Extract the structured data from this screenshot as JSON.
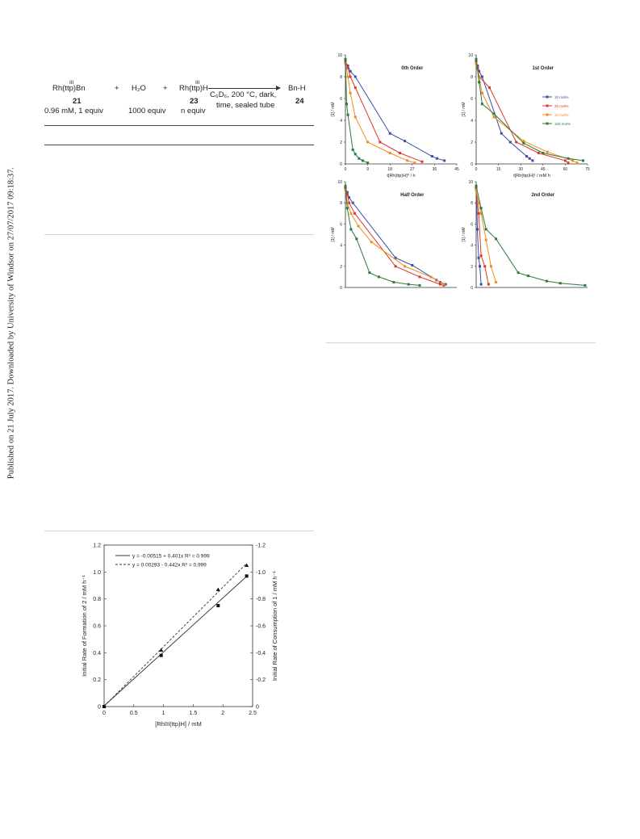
{
  "sidebar": {
    "text": "Published on 21 July 2017. Downloaded by University of Windsor on 27/07/2017 09:18:37."
  },
  "scheme": {
    "reactant1": "Rh(ttp)Bn",
    "reactant1_ox": "III",
    "plus1": "+",
    "reactant2": "H₂O",
    "plus2": "+",
    "reactant3": "Rh(ttp)H",
    "reactant3_ox": "III",
    "cond_line1": "C₆D₆, 200 °C, dark,",
    "cond_line2": "time, sealed tube",
    "product": "Bn-H",
    "num1": "21",
    "num3": "23",
    "num_product": "24",
    "amt1": "0.96 mM, 1 equiv",
    "amt2": "1000 equiv",
    "amt3": "n equiv"
  },
  "chart_data": [
    {
      "type": "line",
      "title": "0th Order",
      "xlabel": "t[Rh(ttp)H]⁰ / h",
      "ylabel": "[1] / mM",
      "xlim": [
        0,
        45
      ],
      "ylim": [
        0,
        10
      ],
      "xticks": [
        "0",
        "9",
        "18",
        "27",
        "36",
        "45"
      ],
      "yticks": [
        "0",
        "2",
        "4",
        "6",
        "8",
        "10"
      ],
      "series": [
        {
          "name": "10 mol%",
          "color": "#3a4fa8",
          "x": [
            0,
            1,
            2,
            4,
            18,
            24,
            35,
            37,
            40
          ],
          "y": [
            9.4,
            9.0,
            8.5,
            8.0,
            2.8,
            2.1,
            0.7,
            0.5,
            0.3
          ]
        },
        {
          "name": "20 mol%",
          "color": "#e0352b",
          "x": [
            0,
            1,
            2,
            4,
            14,
            22,
            31
          ],
          "y": [
            9.3,
            8.8,
            8.0,
            7.0,
            2.0,
            1.0,
            0.2
          ]
        },
        {
          "name": "33 mol%",
          "color": "#f08c1c",
          "x": [
            0,
            1,
            2,
            4,
            9,
            18,
            25,
            28
          ],
          "y": [
            9.2,
            8.0,
            6.5,
            4.3,
            2.0,
            1.0,
            0.3,
            0.1
          ]
        },
        {
          "name": "100 mol%",
          "color": "#2d7a3a",
          "x": [
            0,
            0.5,
            1,
            3,
            4,
            5.5,
            7,
            9
          ],
          "y": [
            9.6,
            5.5,
            4.5,
            1.3,
            0.9,
            0.5,
            0.3,
            0.1
          ]
        }
      ]
    },
    {
      "type": "line",
      "title": "1st Order",
      "xlabel": "t[Rh(ttp)H]¹ / mM h",
      "ylabel": "[1] / mM",
      "xlim": [
        0,
        75
      ],
      "ylim": [
        0,
        10
      ],
      "xticks": [
        "0",
        "15",
        "30",
        "45",
        "60",
        "75"
      ],
      "yticks": [
        "0",
        "2",
        "4",
        "6",
        "8",
        "10"
      ],
      "legend_position": "right",
      "series": [
        {
          "name": "10 mol%",
          "color": "#3a4fa8",
          "x": [
            0,
            1,
            2,
            4,
            17,
            23,
            34,
            36,
            38
          ],
          "y": [
            9.4,
            9.0,
            8.5,
            8.0,
            2.8,
            2.0,
            0.7,
            0.5,
            0.3
          ]
        },
        {
          "name": "20 mol%",
          "color": "#e0352b",
          "x": [
            0,
            1,
            2,
            9,
            27,
            42,
            60,
            62
          ],
          "y": [
            9.3,
            8.8,
            8.0,
            7.0,
            2.0,
            1.0,
            0.3,
            0.1
          ]
        },
        {
          "name": "33 mol%",
          "color": "#f08c1c",
          "x": [
            0,
            2,
            4,
            12,
            32,
            48,
            65,
            68
          ],
          "y": [
            9.2,
            8.0,
            6.5,
            4.3,
            2.1,
            1.1,
            0.3,
            0.1
          ]
        },
        {
          "name": "100 mol%",
          "color": "#2d7a3a",
          "x": [
            0,
            2,
            4,
            12,
            32,
            45,
            62,
            72
          ],
          "y": [
            9.6,
            7.5,
            5.5,
            4.6,
            1.9,
            1.0,
            0.5,
            0.3
          ]
        }
      ]
    },
    {
      "type": "line",
      "title": "Half Order",
      "xlabel": "",
      "ylabel": "[1] / mM",
      "xlim": [
        0,
        60
      ],
      "ylim": [
        0,
        10
      ],
      "xticks": [],
      "yticks": [
        "0",
        "2",
        "4",
        "6",
        "8",
        "10"
      ],
      "series": [
        {
          "name": "10 mol%",
          "color": "#3a4fa8",
          "x": [
            0,
            1,
            2,
            4,
            27,
            36,
            49,
            51,
            54
          ],
          "y": [
            9.4,
            9.0,
            8.5,
            8.0,
            2.8,
            2.1,
            0.7,
            0.5,
            0.3
          ]
        },
        {
          "name": "20 mol%",
          "color": "#e0352b",
          "x": [
            0,
            1,
            2,
            5,
            27,
            40,
            51,
            53
          ],
          "y": [
            9.3,
            8.8,
            8.0,
            7.0,
            2.0,
            1.0,
            0.3,
            0.2
          ]
        },
        {
          "name": "33 mol%",
          "color": "#f08c1c",
          "x": [
            0,
            1,
            3,
            7,
            14,
            32,
            46,
            53
          ],
          "y": [
            9.2,
            8.0,
            7.0,
            5.8,
            4.3,
            2.0,
            1.0,
            0.3
          ]
        },
        {
          "name": "100 mol%",
          "color": "#2d7a3a",
          "x": [
            0,
            1,
            3,
            6,
            13,
            18,
            26,
            34,
            40
          ],
          "y": [
            9.6,
            7.5,
            5.5,
            4.6,
            1.4,
            1.0,
            0.5,
            0.3,
            0.2
          ]
        }
      ]
    },
    {
      "type": "line",
      "title": "2nd Order",
      "xlabel": "",
      "ylabel": "[1] / mM",
      "xlim": [
        0,
        900
      ],
      "ylim": [
        0,
        10
      ],
      "xticks": [],
      "yticks": [
        "0",
        "2",
        "4",
        "6",
        "8",
        "10"
      ],
      "series": [
        {
          "name": "10 mol%",
          "color": "#3a4fa8",
          "x": [
            0,
            5,
            10,
            20,
            30,
            40
          ],
          "y": [
            9.4,
            8.0,
            5.5,
            2.8,
            2.0,
            0.3
          ]
        },
        {
          "name": "20 mol%",
          "color": "#e0352b",
          "x": [
            0,
            10,
            20,
            40,
            70,
            100
          ],
          "y": [
            9.3,
            8.0,
            7.0,
            3.0,
            2.0,
            0.3
          ]
        },
        {
          "name": "33 mol%",
          "color": "#f08c1c",
          "x": [
            0,
            20,
            40,
            80,
            120,
            160
          ],
          "y": [
            9.2,
            8.0,
            7.0,
            4.5,
            2.0,
            0.5
          ]
        },
        {
          "name": "100 mol%",
          "color": "#2d7a3a",
          "x": [
            0,
            40,
            80,
            160,
            340,
            420,
            570,
            680,
            880
          ],
          "y": [
            9.6,
            7.5,
            5.5,
            4.6,
            1.4,
            1.1,
            0.6,
            0.4,
            0.2
          ]
        }
      ]
    },
    {
      "type": "scatter",
      "xlabel": "[RhIII(ttp)H] / mM",
      "ylabel": "Initial Rate of Formation of 2 / mM h⁻¹",
      "y2label": "Initial Rate of Consumption of 1 / mM h⁻¹",
      "xlim": [
        0,
        2.5
      ],
      "ylim": [
        0,
        1.2
      ],
      "y2lim": [
        0,
        -1.2
      ],
      "xticks": [
        "0",
        "0.5",
        "1",
        "1.5",
        "2",
        "2.5"
      ],
      "yticks": [
        "0",
        "0.2",
        "0.4",
        "0.6",
        "0.8",
        "1.0",
        "1.2"
      ],
      "y2ticks": [
        "0",
        "-0.2",
        "-0.4",
        "-0.6",
        "-0.8",
        "-1.0",
        "-1.2"
      ],
      "legend": [
        {
          "text": "y = -0.00515 + 0.401x   R² = 0.999",
          "style": "solid"
        },
        {
          "text": "y = 0.00293 - 0.442x   R² = 0.999",
          "style": "dashed"
        }
      ],
      "series": [
        {
          "name": "formation of 2",
          "marker": "square",
          "line": "solid",
          "fit": [
            -0.00515,
            0.401
          ],
          "x": [
            0,
            0.96,
            1.92,
            2.4
          ],
          "y": [
            0,
            0.38,
            0.75,
            0.97
          ]
        },
        {
          "name": "consumption of 1",
          "marker": "triangle",
          "line": "dashed",
          "fit": [
            0.00293,
            0.442
          ],
          "x": [
            0,
            0.96,
            1.92,
            2.4
          ],
          "y": [
            0,
            0.42,
            0.87,
            1.05
          ]
        }
      ]
    }
  ]
}
